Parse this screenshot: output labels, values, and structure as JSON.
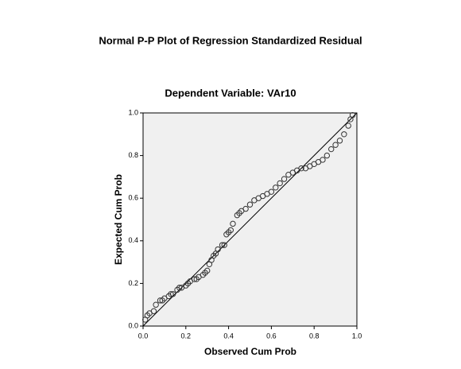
{
  "chart_data": {
    "type": "scatter",
    "title": "Normal P-P Plot of Regression Standardized Residual",
    "subtitle": "Dependent Variable: VAr10",
    "x_label": "Observed Cum Prob",
    "y_label": "Expected Cum Prob",
    "xlim": [
      0,
      1
    ],
    "ylim": [
      0,
      1
    ],
    "xticks": [
      {
        "value": 0,
        "label": "0.0"
      },
      0.2,
      0.4,
      0.6,
      0.8,
      {
        "value": 1,
        "label": "1.0"
      }
    ],
    "yticks": [
      {
        "value": 0,
        "label": "0.0"
      },
      0.2,
      0.4,
      0.6,
      0.8,
      {
        "value": 1,
        "label": "1.0"
      }
    ],
    "background": "#f0f0f0",
    "series": [
      {
        "color": "#333333",
        "x": [
          0.01,
          0.02,
          0.03,
          0.05,
          0.06,
          0.08,
          0.09,
          0.1,
          0.12,
          0.13,
          0.14,
          0.16,
          0.17,
          0.18,
          0.2,
          0.21,
          0.22,
          0.24,
          0.25,
          0.26,
          0.28,
          0.29,
          0.3,
          0.31,
          0.32,
          0.33,
          0.34,
          0.35,
          0.37,
          0.38,
          0.39,
          0.4,
          0.41,
          0.42,
          0.44,
          0.45,
          0.46,
          0.48,
          0.5,
          0.52,
          0.54,
          0.56,
          0.58,
          0.6,
          0.62,
          0.64,
          0.66,
          0.68,
          0.7,
          0.72,
          0.74,
          0.76,
          0.78,
          0.8,
          0.82,
          0.84,
          0.86,
          0.88,
          0.9,
          0.92,
          0.94,
          0.96,
          0.97,
          0.98
        ],
        "y": [
          0.03,
          0.05,
          0.06,
          0.07,
          0.1,
          0.12,
          0.12,
          0.13,
          0.14,
          0.15,
          0.15,
          0.17,
          0.18,
          0.18,
          0.19,
          0.2,
          0.21,
          0.22,
          0.22,
          0.23,
          0.24,
          0.25,
          0.26,
          0.29,
          0.31,
          0.33,
          0.34,
          0.36,
          0.38,
          0.38,
          0.43,
          0.44,
          0.45,
          0.48,
          0.52,
          0.53,
          0.54,
          0.55,
          0.57,
          0.59,
          0.6,
          0.61,
          0.62,
          0.63,
          0.65,
          0.67,
          0.69,
          0.71,
          0.72,
          0.73,
          0.74,
          0.74,
          0.75,
          0.76,
          0.77,
          0.78,
          0.8,
          0.83,
          0.85,
          0.87,
          0.9,
          0.94,
          0.97,
          0.99
        ]
      }
    ]
  }
}
